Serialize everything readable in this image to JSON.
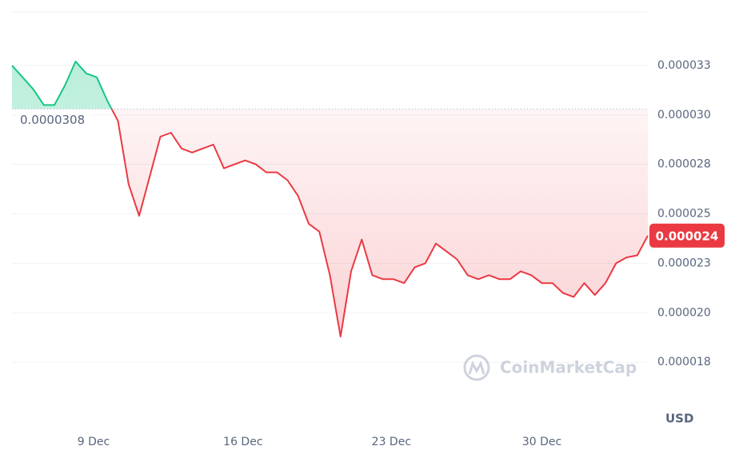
{
  "chart_data": {
    "type": "line",
    "values": [
      3.3e-05,
      3.24e-05,
      3.18e-05,
      3.1e-05,
      3.1e-05,
      3.2e-05,
      3.32e-05,
      3.26e-05,
      3.24e-05,
      3.12e-05,
      3.02e-05,
      2.7e-05,
      2.54e-05,
      2.74e-05,
      2.94e-05,
      2.96e-05,
      2.88e-05,
      2.86e-05,
      2.88e-05,
      2.9e-05,
      2.78e-05,
      2.8e-05,
      2.82e-05,
      2.8e-05,
      2.76e-05,
      2.76e-05,
      2.72e-05,
      2.64e-05,
      2.5e-05,
      2.46e-05,
      2.24e-05,
      1.93e-05,
      2.26e-05,
      2.42e-05,
      2.24e-05,
      2.22e-05,
      2.22e-05,
      2.2e-05,
      2.28e-05,
      2.3e-05,
      2.4e-05,
      2.36e-05,
      2.32e-05,
      2.24e-05,
      2.22e-05,
      2.24e-05,
      2.22e-05,
      2.22e-05,
      2.26e-05,
      2.24e-05,
      2.2e-05,
      2.2e-05,
      2.15e-05,
      2.13e-05,
      2.2e-05,
      2.14e-05,
      2.2e-05,
      2.3e-05,
      2.33e-05,
      2.34e-05,
      2.44e-05
    ],
    "color_up": "#16c784",
    "color_down": "#ea3943",
    "reference": {
      "value": 3.08e-05,
      "label": "0.0000308"
    },
    "last_price": {
      "value": 2.44e-05,
      "label": "0.000024"
    },
    "ylim": [
      1.49e-05,
      3.57e-05
    ],
    "yticks": [
      {
        "value": 1.8e-05,
        "label": "0.000018"
      },
      {
        "value": 2.05e-05,
        "label": "0.000020"
      },
      {
        "value": 2.3e-05,
        "label": "0.000023"
      },
      {
        "value": 2.55e-05,
        "label": "0.000025"
      },
      {
        "value": 2.8e-05,
        "label": "0.000028"
      },
      {
        "value": 3.05e-05,
        "label": "0.000030"
      },
      {
        "value": 3.3e-05,
        "label": "0.000033"
      }
    ],
    "xlim": [
      0,
      60
    ],
    "xticks": [
      {
        "value": 7.7,
        "label": "9 Dec"
      },
      {
        "value": 21.8,
        "label": "16 Dec"
      },
      {
        "value": 35.8,
        "label": "23 Dec"
      },
      {
        "value": 50.0,
        "label": "30 Dec"
      }
    ],
    "grid": true,
    "currency_label": "USD",
    "watermark": "CoinMarketCap"
  }
}
